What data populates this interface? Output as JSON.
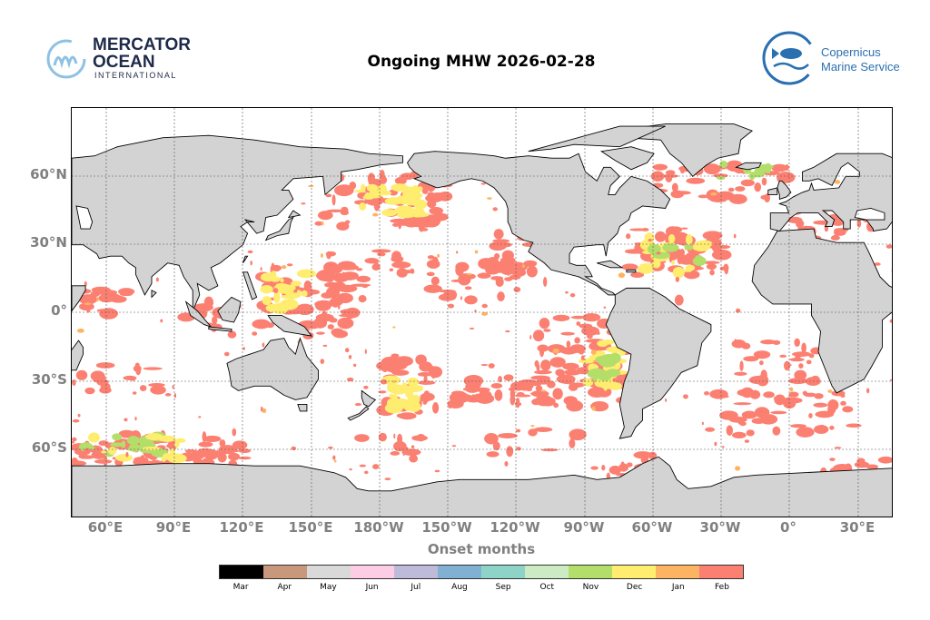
{
  "header": {
    "title": "Ongoing MHW 2026-02-28",
    "left_logo": {
      "line1": "MERCATOR",
      "line2": "OCEAN",
      "line3": "INTERNATIONAL"
    },
    "right_logo": {
      "line1": "Copernicus",
      "line2": "Marine Service"
    }
  },
  "map": {
    "lon_ticks": [
      "60°E",
      "90°E",
      "120°E",
      "150°E",
      "180°W",
      "150°W",
      "120°W",
      "90°W",
      "60°W",
      "30°W",
      "0°",
      "30°E"
    ],
    "lat_ticks": [
      "60°N",
      "30°N",
      "0°",
      "30°S",
      "60°S"
    ],
    "xlabel": "Onset months",
    "land_color": "#d3d3d3"
  },
  "colorbar": {
    "labels": [
      "Mar",
      "Apr",
      "May",
      "Jun",
      "Jul",
      "Aug",
      "Sep",
      "Oct",
      "Nov",
      "Dec",
      "Jan",
      "Feb"
    ],
    "colors": [
      "#000000",
      "#c9977c",
      "#d9d9d9",
      "#fccde5",
      "#bebada",
      "#80b1d3",
      "#8dd3c7",
      "#ccebc5",
      "#b3de69",
      "#ffed6f",
      "#fdb462",
      "#fb8072"
    ]
  }
}
